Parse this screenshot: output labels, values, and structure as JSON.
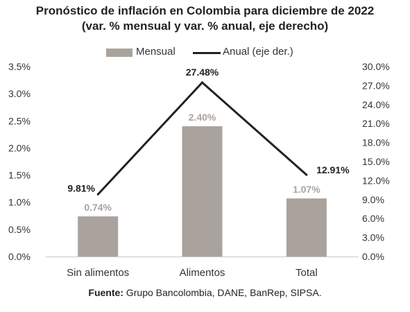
{
  "title": "Pronóstico de inflación en Colombia para diciembre de 2022",
  "subtitle": "(var. % mensual y var. % anual, eje derecho)",
  "legend": {
    "bar_label": "Mensual",
    "line_label": "Anual (eje der.)"
  },
  "footer": {
    "label": "Fuente:",
    "text": " Grupo Bancolombia, DANE, BanRep, SIPSA."
  },
  "colors": {
    "bar": "#aaa39d",
    "bar_label": "#aaa39d",
    "line": "#222222",
    "axis": "#c8c8c8"
  },
  "chart_data": {
    "type": "bar",
    "categories": [
      "Sin alimentos",
      "Alimentos",
      "Total"
    ],
    "series": [
      {
        "name": "Mensual",
        "type": "bar",
        "axis": "left",
        "values": [
          0.74,
          2.4,
          1.07
        ],
        "labels": [
          "0.74%",
          "2.40%",
          "1.07%"
        ]
      },
      {
        "name": "Anual (eje der.)",
        "type": "line",
        "axis": "right",
        "values": [
          9.81,
          27.48,
          12.91
        ],
        "labels": [
          "9.81%",
          "27.48%",
          "12.91%"
        ]
      }
    ],
    "y_left": {
      "range": [
        0,
        3.5
      ],
      "ticks": [
        "0.0%",
        "0.5%",
        "1.0%",
        "1.5%",
        "2.0%",
        "2.5%",
        "3.0%",
        "3.5%"
      ]
    },
    "y_right": {
      "range": [
        0,
        30
      ],
      "ticks": [
        "0.0%",
        "3.0%",
        "6.0%",
        "9.0%",
        "12.0%",
        "15.0%",
        "18.0%",
        "21.0%",
        "24.0%",
        "27.0%",
        "30.0%"
      ]
    },
    "grid": false,
    "legend_position": "top"
  }
}
